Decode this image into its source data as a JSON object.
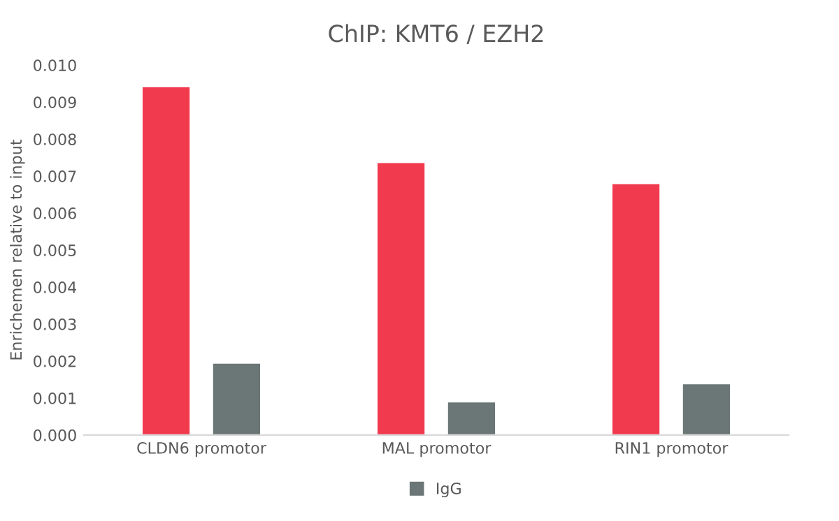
{
  "chart_data": {
    "type": "bar",
    "title": "ChIP: KMT6 / EZH2",
    "ylabel": "Enrichemen relative to input",
    "categories": [
      "CLDN6 promotor",
      "MAL promotor",
      "RIN1 promotor"
    ],
    "series": [
      {
        "color": "#f23a4e",
        "values": [
          0.0094,
          0.00735,
          0.00678
        ]
      },
      {
        "name": "IgG",
        "color": "#6b7676",
        "values": [
          0.00193,
          0.00088,
          0.00137
        ]
      }
    ],
    "ylim": [
      0,
      0.01
    ],
    "yticks": [
      {
        "value": 0,
        "label": "0.000"
      },
      {
        "value": 0.001,
        "label": "0.001"
      },
      {
        "value": 0.002,
        "label": "0.002"
      },
      {
        "value": 0.003,
        "label": "0.003"
      },
      {
        "value": 0.004,
        "label": "0.004"
      },
      {
        "value": 0.005,
        "label": "0.005"
      },
      {
        "value": 0.006,
        "label": "0.006"
      },
      {
        "value": 0.007,
        "label": "0.007"
      },
      {
        "value": 0.008,
        "label": "0.008"
      },
      {
        "value": 0.009,
        "label": "0.009"
      },
      {
        "value": 0.01,
        "label": "0.010"
      }
    ],
    "grid": false,
    "legend": "bottom"
  }
}
